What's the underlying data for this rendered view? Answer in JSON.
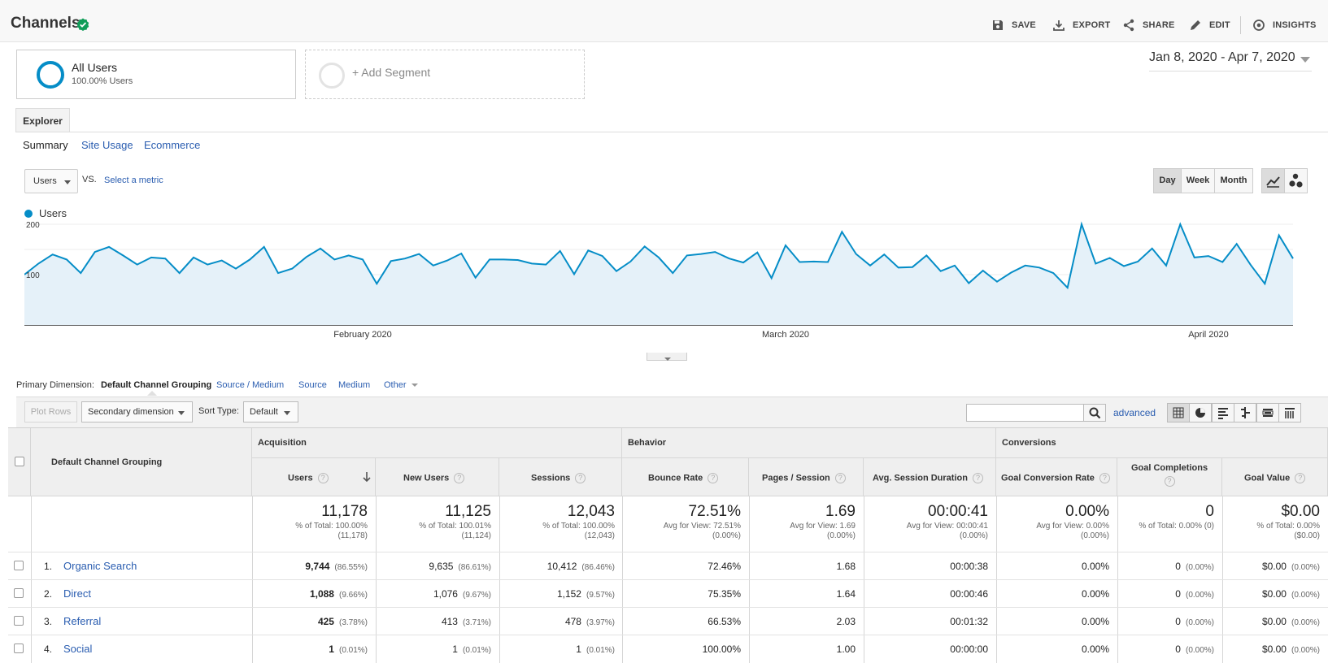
{
  "header": {
    "title": "Channels",
    "actions": {
      "save": "SAVE",
      "export": "EXPORT",
      "share": "SHARE",
      "edit": "EDIT",
      "insights": "INSIGHTS"
    }
  },
  "segments": {
    "all_users": {
      "name": "All Users",
      "pct": "100.00% Users"
    },
    "add": "+ Add Segment"
  },
  "date_range": "Jan 8, 2020 - Apr 7, 2020",
  "tab": "Explorer",
  "subtabs": [
    "Summary",
    "Site Usage",
    "Ecommerce"
  ],
  "chart_controls": {
    "metric": "Users",
    "vs": "VS.",
    "select_metric": "Select a metric",
    "periods": [
      "Day",
      "Week",
      "Month"
    ],
    "active_period": "Day"
  },
  "colors": {
    "series": "#058dc7",
    "area": "#e5f1f9",
    "link": "#2a5db0"
  },
  "chart_data": {
    "type": "area",
    "series": [
      {
        "name": "Users",
        "values": [
          100,
          122,
          140,
          130,
          103,
          145,
          155,
          138,
          120,
          134,
          132,
          103,
          134,
          120,
          128,
          112,
          130,
          155,
          103,
          112,
          135,
          152,
          130,
          138,
          130,
          82,
          127,
          132,
          141,
          118,
          128,
          142,
          94,
          130,
          130,
          129,
          122,
          120,
          147,
          101,
          148,
          137,
          107,
          126,
          156,
          134,
          103,
          138,
          141,
          145,
          132,
          124,
          144,
          93,
          158,
          125,
          126,
          125,
          185,
          141,
          118,
          140,
          114,
          115,
          138,
          107,
          118,
          83,
          108,
          86,
          104,
          118,
          114,
          103,
          74,
          200,
          122,
          133,
          117,
          126,
          152,
          118,
          200,
          134,
          137,
          125,
          161,
          119,
          82,
          178,
          132
        ],
        "x_labels": [
          "February 2020",
          "March 2020",
          "April 2020"
        ]
      }
    ],
    "legend": "Users",
    "y_ticks": [
      100,
      200
    ],
    "ylim": [
      0,
      200
    ],
    "legend_placement": "top-left",
    "grid": true
  },
  "dimension": {
    "label": "Primary Dimension:",
    "options": [
      "Default Channel Grouping",
      "Source / Medium",
      "Source",
      "Medium",
      "Other"
    ]
  },
  "tools": {
    "plot_rows": "Plot Rows",
    "secondary_dim": "Secondary dimension",
    "sort_label": "Sort Type:",
    "sort_value": "Default",
    "advanced": "advanced",
    "search_placeholder": ""
  },
  "table": {
    "dim_header": "Default Channel Grouping",
    "groups": {
      "acq": "Acquisition",
      "beh": "Behavior",
      "conv": "Conversions"
    },
    "columns": [
      "Users",
      "New Users",
      "Sessions",
      "Bounce Rate",
      "Pages / Session",
      "Avg. Session Duration",
      "Goal Conversion Rate",
      "Goal Completions",
      "Goal Value"
    ],
    "totals": [
      {
        "value": "11,178",
        "line1": "% of Total: 100.00%",
        "line2": "(11,178)"
      },
      {
        "value": "11,125",
        "line1": "% of Total: 100.01%",
        "line2": "(11,124)"
      },
      {
        "value": "12,043",
        "line1": "% of Total: 100.00%",
        "line2": "(12,043)"
      },
      {
        "value": "72.51%",
        "line1": "Avg for View: 72.51%",
        "line2": "(0.00%)"
      },
      {
        "value": "1.69",
        "line1": "Avg for View: 1.69",
        "line2": "(0.00%)"
      },
      {
        "value": "00:00:41",
        "line1": "Avg for View: 00:00:41",
        "line2": "(0.00%)"
      },
      {
        "value": "0.00%",
        "line1": "Avg for View: 0.00%",
        "line2": "(0.00%)"
      },
      {
        "value": "0",
        "line1": "% of Total: 0.00% (0)",
        "line2": ""
      },
      {
        "value": "$0.00",
        "line1": "% of Total: 0.00%",
        "line2": "($0.00)"
      }
    ],
    "rows": [
      {
        "num": "1.",
        "name": "Organic Search",
        "users": "9,744",
        "users_pct": "(86.55%)",
        "new_users": "9,635",
        "new_users_pct": "(86.61%)",
        "sessions": "10,412",
        "sessions_pct": "(86.46%)",
        "bounce": "72.46%",
        "pages": "1.68",
        "duration": "00:00:38",
        "conv_rate": "0.00%",
        "completions": "0",
        "completions_pct": "(0.00%)",
        "value": "$0.00",
        "value_pct": "(0.00%)"
      },
      {
        "num": "2.",
        "name": "Direct",
        "users": "1,088",
        "users_pct": "(9.66%)",
        "new_users": "1,076",
        "new_users_pct": "(9.67%)",
        "sessions": "1,152",
        "sessions_pct": "(9.57%)",
        "bounce": "75.35%",
        "pages": "1.64",
        "duration": "00:00:46",
        "conv_rate": "0.00%",
        "completions": "0",
        "completions_pct": "(0.00%)",
        "value": "$0.00",
        "value_pct": "(0.00%)"
      },
      {
        "num": "3.",
        "name": "Referral",
        "users": "425",
        "users_pct": "(3.78%)",
        "new_users": "413",
        "new_users_pct": "(3.71%)",
        "sessions": "478",
        "sessions_pct": "(3.97%)",
        "bounce": "66.53%",
        "pages": "2.03",
        "duration": "00:01:32",
        "conv_rate": "0.00%",
        "completions": "0",
        "completions_pct": "(0.00%)",
        "value": "$0.00",
        "value_pct": "(0.00%)"
      },
      {
        "num": "4.",
        "name": "Social",
        "users": "1",
        "users_pct": "(0.01%)",
        "new_users": "1",
        "new_users_pct": "(0.01%)",
        "sessions": "1",
        "sessions_pct": "(0.01%)",
        "bounce": "100.00%",
        "pages": "1.00",
        "duration": "00:00:00",
        "conv_rate": "0.00%",
        "completions": "0",
        "completions_pct": "(0.00%)",
        "value": "$0.00",
        "value_pct": "(0.00%)"
      }
    ]
  }
}
